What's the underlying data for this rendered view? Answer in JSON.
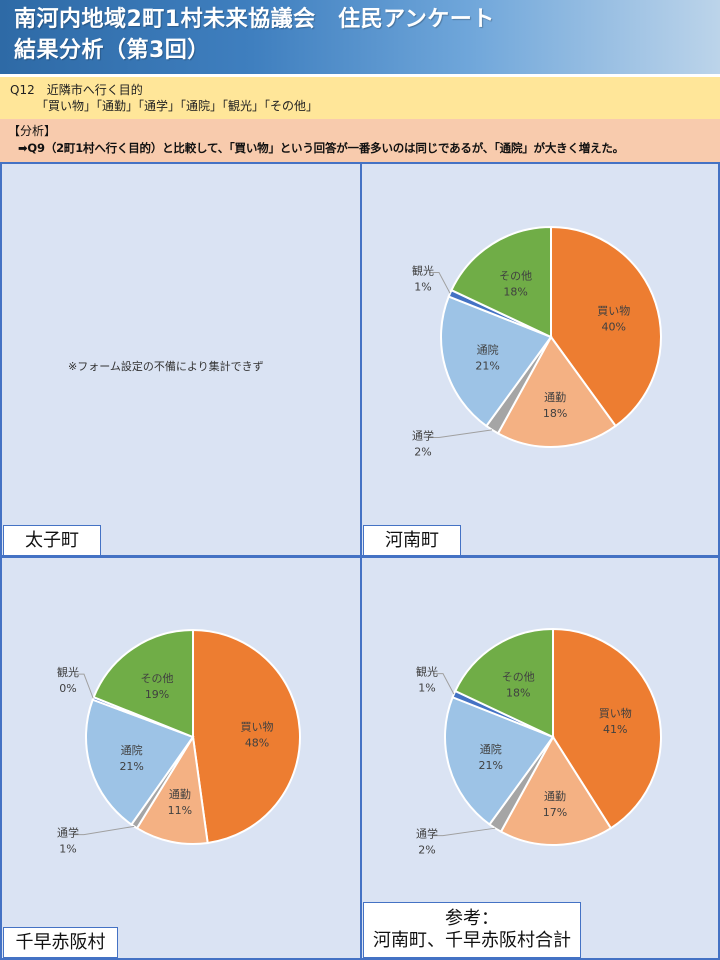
{
  "header": {
    "title_line1": "南河内地域2町1村未来協議会　住民アンケート",
    "title_line2": "結果分析（第3回）"
  },
  "question": {
    "id_text": "Q12　近隣市へ行く目的",
    "options_text": "「買い物」「通勤」「通学」「通院」「観光」「その他」"
  },
  "analysis": {
    "heading": "【分析】",
    "text": "➡Q9（2町1村へ行く目的）と比較して、「買い物」という回答が一番多いのは同じであるが、「通院」が大きく増えた。"
  },
  "panels": {
    "taishi": {
      "label": "太子町",
      "note": "※フォーム設定の不備により集計できず"
    },
    "kanan": {
      "label": "河南町"
    },
    "chihaya": {
      "label": "千早赤阪村"
    },
    "total": {
      "label_line1": "参考：",
      "label_line2": "河南町、千早赤阪村合計"
    }
  },
  "colors": {
    "買い物": "#ed7d31",
    "通勤": "#f4b183",
    "通学": "#a5a5a5",
    "通院": "#9dc3e6",
    "観光": "#4472c4",
    "その他": "#70ad47"
  },
  "chart_data": [
    {
      "type": "pie",
      "title": "太子町",
      "categories": [],
      "values": [],
      "annotation": "※フォーム設定の不備により集計できず"
    },
    {
      "type": "pie",
      "title": "河南町",
      "categories": [
        "買い物",
        "通勤",
        "通学",
        "通院",
        "観光",
        "その他"
      ],
      "values": [
        40,
        18,
        2,
        21,
        1,
        18
      ],
      "labels": [
        "買い物 40%",
        "通勤 18%",
        "通学 2%",
        "通院 21%",
        "観光 1%",
        "その他 18%"
      ]
    },
    {
      "type": "pie",
      "title": "千早赤阪村",
      "categories": [
        "買い物",
        "通勤",
        "通学",
        "通院",
        "観光",
        "その他"
      ],
      "values": [
        48,
        11,
        1,
        21,
        0.4,
        19
      ],
      "labels": [
        "買い物 48%",
        "通勤 11%",
        "通学 1%",
        "通院 21%",
        "観光 0%",
        "その他 19%"
      ]
    },
    {
      "type": "pie",
      "title": "参考：河南町、千早赤阪村合計",
      "categories": [
        "買い物",
        "通勤",
        "通学",
        "通院",
        "観光",
        "その他"
      ],
      "values": [
        41,
        17,
        2,
        21,
        1,
        18
      ],
      "labels": [
        "買い物 41%",
        "通勤 17%",
        "通学 2%",
        "通院 21%",
        "観光 1%",
        "その他 18%"
      ]
    }
  ]
}
